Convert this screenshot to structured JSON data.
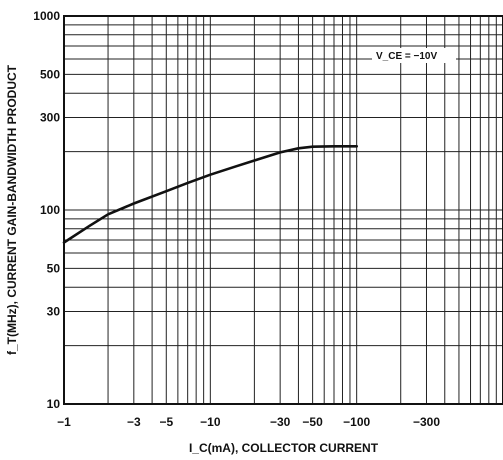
{
  "chart_data": {
    "type": "line",
    "xlabel": "I_C(mA), COLLECTOR CURRENT",
    "ylabel": "f_T(MHz), CURRENT GAIN-BANDWIDTH PRODUCT",
    "x_scale": "log",
    "y_scale": "log",
    "xlim": [
      1,
      1000
    ],
    "ylim": [
      10,
      1000
    ],
    "grid": true,
    "x_ticks": [
      {
        "value": 1,
        "label": "−1"
      },
      {
        "value": 3,
        "label": "−3"
      },
      {
        "value": 5,
        "label": "−5"
      },
      {
        "value": 10,
        "label": "−10"
      },
      {
        "value": 30,
        "label": "−30"
      },
      {
        "value": 50,
        "label": "−50"
      },
      {
        "value": 100,
        "label": "−100"
      },
      {
        "value": 300,
        "label": "−300"
      }
    ],
    "y_ticks": [
      {
        "value": 10,
        "label": "10"
      },
      {
        "value": 30,
        "label": "30"
      },
      {
        "value": 50,
        "label": "50"
      },
      {
        "value": 100,
        "label": "100"
      },
      {
        "value": 300,
        "label": "300"
      },
      {
        "value": 500,
        "label": "500"
      },
      {
        "value": 1000,
        "label": "1000"
      }
    ],
    "annotation": {
      "text": "V_CE = −10V"
    },
    "series": [
      {
        "x": [
          1,
          1.5,
          2,
          3,
          5,
          7,
          10,
          15,
          20,
          30,
          40,
          50,
          70,
          100
        ],
        "y": [
          68,
          83,
          95,
          108,
          125,
          138,
          152,
          168,
          180,
          198,
          208,
          212,
          213,
          213
        ]
      }
    ],
    "colors": {
      "line": "#111111",
      "grid": "#222222",
      "background": "#ffffff"
    }
  }
}
